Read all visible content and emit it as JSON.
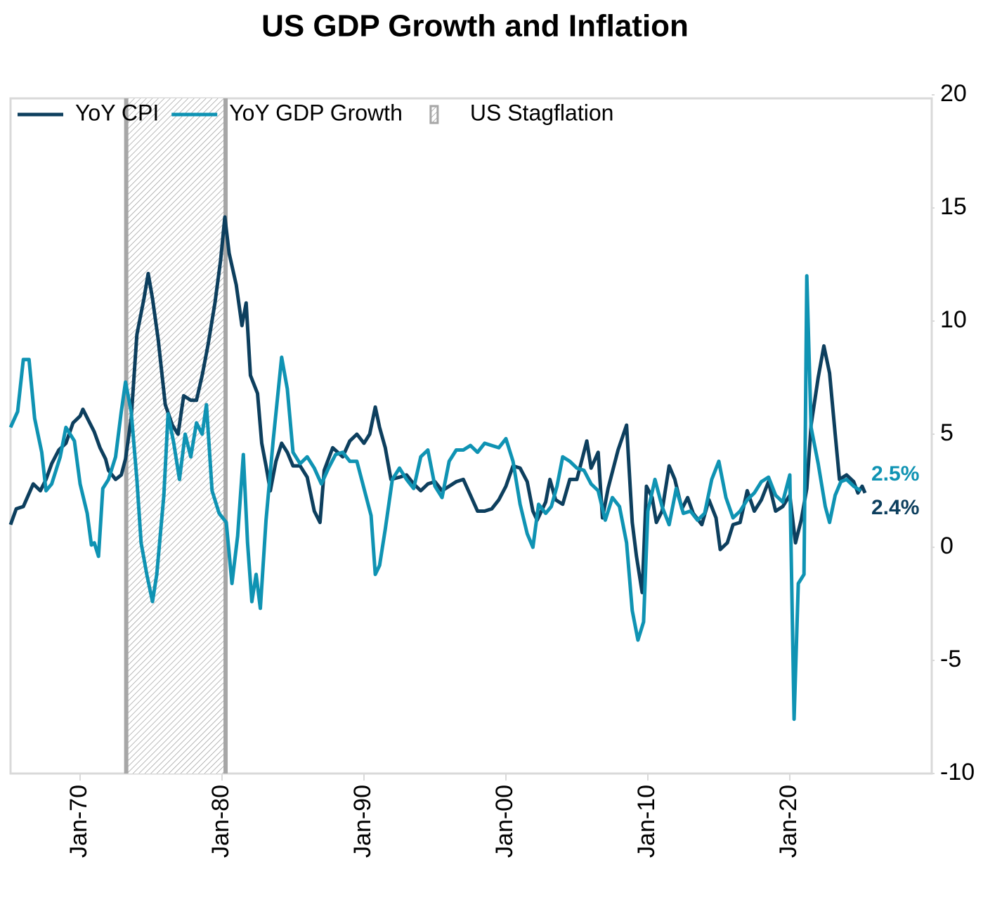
{
  "chart_data": {
    "type": "line",
    "title": "US GDP Growth and Inflation",
    "xlim": [
      1965.1,
      2030
    ],
    "ylim": [
      -10,
      20
    ],
    "yticks": [
      -10,
      -5,
      0,
      5,
      10,
      15,
      20
    ],
    "xticks": [
      {
        "value": 1970,
        "label": "Jan-70"
      },
      {
        "value": 1980,
        "label": "Jan-80"
      },
      {
        "value": 1990,
        "label": "Jan-90"
      },
      {
        "value": 2000,
        "label": "Jan-00"
      },
      {
        "value": 2010,
        "label": "Jan-10"
      },
      {
        "value": 2020,
        "label": "Jan-20"
      }
    ],
    "grid": false,
    "legend": "top-left",
    "shaded_regions": [
      {
        "name": "US Stagflation",
        "x": [
          1973.25,
          1980.25
        ],
        "color": "#a6a6a6"
      }
    ],
    "series": [
      {
        "name": "YoY CPI",
        "color": "#0d3f5e",
        "end_label": "2.4%",
        "x": [
          1965.1,
          1965.5,
          1966,
          1966.7,
          1967.2,
          1967.6,
          1968,
          1968.5,
          1969,
          1969.5,
          1970,
          1970.2,
          1970.6,
          1971,
          1971.4,
          1971.8,
          1972,
          1972.5,
          1972.9,
          1973.2,
          1973.6,
          1974,
          1974.5,
          1974.8,
          1975.1,
          1975.5,
          1976,
          1976.5,
          1976.9,
          1977.3,
          1977.8,
          1978.2,
          1978.6,
          1979,
          1979.5,
          1979.9,
          1980.2,
          1980.5,
          1981,
          1981.4,
          1981.7,
          1982,
          1982.5,
          1982.8,
          1983.1,
          1983.4,
          1983.8,
          1984.2,
          1984.6,
          1985,
          1985.5,
          1986,
          1986.5,
          1986.9,
          1987.2,
          1987.8,
          1988.5,
          1989,
          1989.5,
          1990,
          1990.4,
          1990.8,
          1991.1,
          1991.5,
          1991.9,
          1992.5,
          1993,
          1993.5,
          1994,
          1994.5,
          1995,
          1995.5,
          1996,
          1996.5,
          1997,
          1997.5,
          1998,
          1998.5,
          1999,
          1999.5,
          2000,
          2000.5,
          2001,
          2001.5,
          2001.9,
          2002.2,
          2002.8,
          2003.1,
          2003.5,
          2004,
          2004.5,
          2005,
          2005.7,
          2006,
          2006.5,
          2006.8,
          2007.2,
          2007.9,
          2008.5,
          2008.9,
          2009.2,
          2009.6,
          2009.9,
          2010.3,
          2010.6,
          2011,
          2011.5,
          2011.9,
          2012.4,
          2012.8,
          2013.2,
          2013.8,
          2014.3,
          2014.8,
          2015.1,
          2015.6,
          2016,
          2016.5,
          2017,
          2017.5,
          2018,
          2018.5,
          2019,
          2019.5,
          2020,
          2020.4,
          2020.8,
          2021.2,
          2021.5,
          2022,
          2022.4,
          2022.8,
          2023.2,
          2023.5,
          2024,
          2024.5,
          2024.8,
          2025.1,
          2025.3
        ],
        "values": [
          1.0,
          1.7,
          1.8,
          2.8,
          2.5,
          3.0,
          3.7,
          4.3,
          4.6,
          5.5,
          5.8,
          6.1,
          5.6,
          5.1,
          4.4,
          3.9,
          3.4,
          3.0,
          3.2,
          3.9,
          5.7,
          9.4,
          11.0,
          12.1,
          11.0,
          9.2,
          6.3,
          5.4,
          5.0,
          6.7,
          6.5,
          6.5,
          7.6,
          8.9,
          10.8,
          12.7,
          14.6,
          13.0,
          11.6,
          9.8,
          10.8,
          7.6,
          6.8,
          4.6,
          3.6,
          2.5,
          3.8,
          4.6,
          4.2,
          3.6,
          3.6,
          3.1,
          1.6,
          1.1,
          3.4,
          4.4,
          4.0,
          4.7,
          5.0,
          4.6,
          5.0,
          6.2,
          5.3,
          4.4,
          3.0,
          3.1,
          3.2,
          2.8,
          2.5,
          2.8,
          2.9,
          2.5,
          2.7,
          2.9,
          3.0,
          2.3,
          1.6,
          1.6,
          1.7,
          2.1,
          2.7,
          3.6,
          3.5,
          2.9,
          1.6,
          1.2,
          2.0,
          3.0,
          2.1,
          1.9,
          3.0,
          3.0,
          4.7,
          3.5,
          4.2,
          1.3,
          2.6,
          4.3,
          5.4,
          1.1,
          -0.4,
          -2.0,
          2.7,
          2.2,
          1.1,
          1.6,
          3.6,
          3.0,
          1.7,
          2.2,
          1.5,
          1.0,
          2.1,
          1.3,
          -0.1,
          0.2,
          1.0,
          1.1,
          2.5,
          1.6,
          2.1,
          2.9,
          1.6,
          1.8,
          2.3,
          0.2,
          1.2,
          2.6,
          5.4,
          7.5,
          8.9,
          7.7,
          5.0,
          3.0,
          3.2,
          2.9,
          2.4,
          2.7,
          2.4
        ]
      },
      {
        "name": "YoY GDP Growth",
        "color": "#0f93b3",
        "end_label": "2.5%",
        "x": [
          1965.1,
          1965.6,
          1966,
          1966.4,
          1966.8,
          1967.3,
          1967.6,
          1968,
          1968.6,
          1969,
          1969.6,
          1970,
          1970.5,
          1970.8,
          1971,
          1971.3,
          1971.6,
          1972,
          1972.5,
          1972.9,
          1973.2,
          1973.6,
          1974,
          1974.3,
          1974.7,
          1975.1,
          1975.4,
          1975.9,
          1976.2,
          1976.6,
          1977,
          1977.4,
          1977.8,
          1978.2,
          1978.6,
          1978.9,
          1979.3,
          1979.8,
          1980.3,
          1980.7,
          1981.1,
          1981.5,
          1981.8,
          1982.1,
          1982.4,
          1982.7,
          1983.1,
          1983.6,
          1984.2,
          1984.6,
          1985,
          1985.5,
          1986,
          1986.5,
          1987,
          1987.5,
          1988,
          1988.5,
          1989,
          1989.5,
          1990,
          1990.5,
          1990.8,
          1991.1,
          1991.5,
          1992,
          1992.5,
          1993,
          1993.5,
          1994,
          1994.5,
          1995,
          1995.5,
          1996,
          1996.5,
          1997,
          1997.5,
          1998,
          1998.5,
          1999,
          1999.5,
          2000,
          2000.5,
          2001,
          2001.5,
          2001.9,
          2002.3,
          2002.8,
          2003.2,
          2003.6,
          2004,
          2004.5,
          2005,
          2005.5,
          2006,
          2006.5,
          2007,
          2007.5,
          2008,
          2008.5,
          2008.9,
          2009.3,
          2009.7,
          2010,
          2010.5,
          2011,
          2011.5,
          2012,
          2012.5,
          2013,
          2013.5,
          2014,
          2014.5,
          2015,
          2015.5,
          2016,
          2016.5,
          2017,
          2017.5,
          2018,
          2018.5,
          2019,
          2019.5,
          2020,
          2020.3,
          2020.6,
          2021,
          2021.2,
          2021.5,
          2022,
          2022.5,
          2022.8,
          2023.2,
          2023.6,
          2024,
          2024.5,
          2025
        ],
        "values": [
          5.3,
          6.0,
          8.3,
          8.3,
          5.7,
          4.2,
          2.5,
          2.8,
          4.0,
          5.3,
          4.7,
          2.8,
          1.5,
          0.1,
          0.2,
          -0.4,
          2.6,
          3.0,
          4.0,
          6.0,
          7.3,
          6.0,
          3.0,
          0.2,
          -1.2,
          -2.4,
          -1.2,
          2.3,
          5.9,
          4.6,
          3.0,
          5.0,
          4.0,
          5.5,
          5.0,
          6.3,
          2.5,
          1.5,
          1.1,
          -1.6,
          0.5,
          4.1,
          0.2,
          -2.4,
          -1.2,
          -2.7,
          1.2,
          4.7,
          8.4,
          7.0,
          4.2,
          3.7,
          4.0,
          3.5,
          2.8,
          3.5,
          4.1,
          4.2,
          3.8,
          3.8,
          2.6,
          1.4,
          -1.2,
          -0.8,
          0.8,
          3.0,
          3.5,
          3.0,
          2.6,
          4.0,
          4.3,
          2.7,
          2.2,
          3.8,
          4.3,
          4.3,
          4.5,
          4.2,
          4.6,
          4.5,
          4.4,
          4.8,
          3.8,
          1.9,
          0.6,
          0.0,
          1.9,
          1.5,
          1.8,
          2.7,
          4.0,
          3.8,
          3.5,
          3.4,
          2.8,
          2.5,
          1.2,
          2.2,
          1.8,
          0.2,
          -2.8,
          -4.1,
          -3.3,
          1.6,
          3.0,
          1.8,
          1.0,
          2.6,
          1.5,
          1.6,
          1.2,
          1.5,
          3.0,
          3.8,
          2.2,
          1.3,
          1.6,
          2.1,
          2.4,
          2.9,
          3.1,
          2.3,
          2.0,
          3.2,
          -7.6,
          -1.6,
          -1.2,
          12.0,
          5.3,
          3.7,
          1.8,
          1.1,
          2.3,
          2.9,
          3.0,
          2.7,
          2.5
        ]
      }
    ]
  }
}
